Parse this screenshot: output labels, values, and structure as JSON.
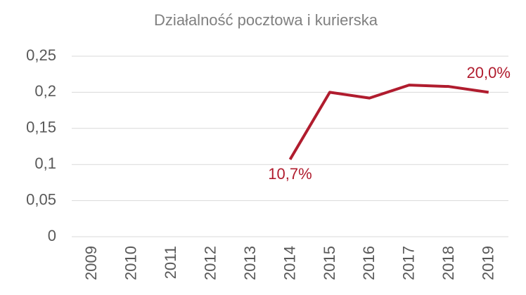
{
  "chart_data": {
    "type": "line",
    "title": "Działalność pocztowa i kurierska",
    "categories": [
      "2009",
      "2010",
      "2011",
      "2012",
      "2013",
      "2014",
      "2015",
      "2016",
      "2017",
      "2018",
      "2019"
    ],
    "values": [
      null,
      null,
      null,
      null,
      null,
      0.107,
      0.2,
      0.192,
      0.21,
      0.208,
      0.2
    ],
    "value_labels": [
      null,
      null,
      null,
      null,
      null,
      "10,7%",
      null,
      null,
      null,
      null,
      "20,0%"
    ],
    "color": "#b01c2e",
    "ylim": [
      0,
      0.25
    ],
    "yticks": [
      0,
      {
        "value": 0.05,
        "label": "0,05"
      },
      {
        "value": 0.1,
        "label": "0,1"
      },
      {
        "value": 0.15,
        "label": "0,15"
      },
      {
        "value": 0.2,
        "label": "0,2"
      },
      {
        "value": 0.25,
        "label": "0,25"
      }
    ],
    "grid": true
  }
}
